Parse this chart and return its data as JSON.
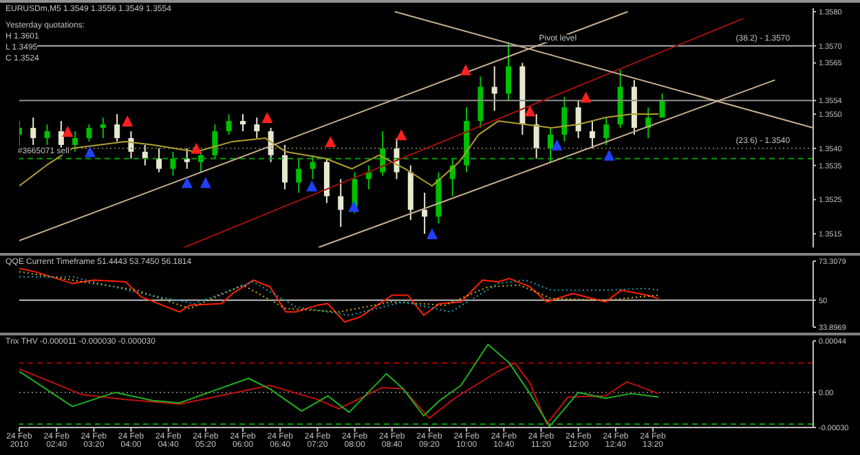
{
  "chart_data": [
    {
      "type": "candlestick",
      "title": "EURUSDm,M5 1.3549 1.3556 1.3549 1.3554",
      "annotations": [
        "Yesterday quotations:",
        "H 1.3601",
        "L 1.3495",
        "C 1.3524",
        {
          "text": "Pivot level",
          "x": "2010-02-24T11:38",
          "y": 1.357
        },
        {
          "text": "#3665071 sell",
          "x": "2010-02-24T02:26",
          "y": 1.3537
        },
        {
          "text": "(38.2) - 1.3570",
          "x": "2010-02-24T15:18",
          "y": 1.357
        },
        {
          "text": "(23.6) - 1.3540",
          "x": "2010-02-24T15:18",
          "y": 1.354
        }
      ],
      "xlim": [
        "2010-02-24T02:00",
        "2010-02-24T16:12"
      ],
      "ylim": [
        1.3511,
        1.3581
      ],
      "yticks": [
        1.3515,
        1.3525,
        1.3535,
        {
          "value": 1.354,
          "label": "1.3540"
        },
        {
          "value": 1.355,
          "label": "1.3550"
        },
        1.3554,
        1.3565,
        {
          "value": 1.357,
          "label": "1.3570"
        },
        {
          "value": 1.358,
          "label": "1.3580"
        }
      ],
      "tick_labels": "y",
      "ref_lines": [
        {
          "axis": "y",
          "value": 1.357,
          "color": "#b0b0b0"
        },
        {
          "axis": "y",
          "value": 1.3554,
          "color": "#909090"
        },
        {
          "axis": "y",
          "value": 1.354,
          "color": "#707050",
          "line_style": "dotted"
        },
        {
          "axis": "y",
          "value": 1.3537,
          "color": "#00a000",
          "line_style": "dashed"
        }
      ],
      "series": [
        {
          "type": "candlestick",
          "x": [
            "2010-02-24T02:00",
            "2010-02-24T02:15",
            "2010-02-24T02:30",
            "2010-02-24T02:45",
            "2010-02-24T03:00",
            "2010-02-24T03:15",
            "2010-02-24T03:30",
            "2010-02-24T03:45",
            "2010-02-24T04:00",
            "2010-02-24T04:15",
            "2010-02-24T04:30",
            "2010-02-24T04:45",
            "2010-02-24T05:00",
            "2010-02-24T05:15",
            "2010-02-24T05:30",
            "2010-02-24T05:45",
            "2010-02-24T06:00",
            "2010-02-24T06:15",
            "2010-02-24T06:30",
            "2010-02-24T06:45",
            "2010-02-24T07:00",
            "2010-02-24T07:15",
            "2010-02-24T07:30",
            "2010-02-24T07:45",
            "2010-02-24T08:00",
            "2010-02-24T08:15",
            "2010-02-24T08:30",
            "2010-02-24T08:45",
            "2010-02-24T09:00",
            "2010-02-24T09:15",
            "2010-02-24T09:30",
            "2010-02-24T09:45",
            "2010-02-24T10:00",
            "2010-02-24T10:15",
            "2010-02-24T10:30",
            "2010-02-24T10:45",
            "2010-02-24T11:00",
            "2010-02-24T11:15",
            "2010-02-24T11:30",
            "2010-02-24T11:45",
            "2010-02-24T12:00",
            "2010-02-24T12:15",
            "2010-02-24T12:30",
            "2010-02-24T12:45",
            "2010-02-24T13:00",
            "2010-02-24T13:15",
            "2010-02-24T13:30"
          ],
          "ohlc": [
            [
              1.3544,
              1.3548,
              1.354,
              1.3546
            ],
            [
              1.3546,
              1.3549,
              1.3541,
              1.3543
            ],
            [
              1.3543,
              1.3547,
              1.3541,
              1.3545
            ],
            [
              1.3545,
              1.3548,
              1.354,
              1.3541
            ],
            [
              1.3541,
              1.3545,
              1.3539,
              1.3543
            ],
            [
              1.3543,
              1.3547,
              1.3542,
              1.3546
            ],
            [
              1.3546,
              1.3549,
              1.3543,
              1.3547
            ],
            [
              1.3547,
              1.355,
              1.3542,
              1.3543
            ],
            [
              1.3543,
              1.3545,
              1.3537,
              1.3539
            ],
            [
              1.3539,
              1.3541,
              1.3535,
              1.3537
            ],
            [
              1.3537,
              1.354,
              1.3533,
              1.3534
            ],
            [
              1.3534,
              1.3539,
              1.3532,
              1.3537
            ],
            [
              1.3537,
              1.354,
              1.3534,
              1.3536
            ],
            [
              1.3536,
              1.3539,
              1.3533,
              1.3538
            ],
            [
              1.3538,
              1.3547,
              1.3537,
              1.3545
            ],
            [
              1.3545,
              1.355,
              1.3544,
              1.3548
            ],
            [
              1.3548,
              1.355,
              1.3545,
              1.3547
            ],
            [
              1.3547,
              1.3549,
              1.3543,
              1.3545
            ],
            [
              1.3545,
              1.3546,
              1.3536,
              1.3538
            ],
            [
              1.3538,
              1.3541,
              1.3528,
              1.353
            ],
            [
              1.353,
              1.3537,
              1.3527,
              1.3534
            ],
            [
              1.3534,
              1.3538,
              1.3531,
              1.3536
            ],
            [
              1.3536,
              1.3537,
              1.3524,
              1.3526
            ],
            [
              1.3526,
              1.3531,
              1.3517,
              1.3522
            ],
            [
              1.3522,
              1.3533,
              1.3521,
              1.3531
            ],
            [
              1.3531,
              1.3535,
              1.3528,
              1.3533
            ],
            [
              1.3533,
              1.3545,
              1.3532,
              1.354
            ],
            [
              1.354,
              1.3543,
              1.3531,
              1.3533
            ],
            [
              1.3533,
              1.3535,
              1.3519,
              1.3522
            ],
            [
              1.3522,
              1.3527,
              1.3515,
              1.352
            ],
            [
              1.352,
              1.3533,
              1.3518,
              1.3531
            ],
            [
              1.3531,
              1.3537,
              1.3526,
              1.3535
            ],
            [
              1.3535,
              1.3552,
              1.3533,
              1.3548
            ],
            [
              1.3548,
              1.3561,
              1.3546,
              1.3558
            ],
            [
              1.3558,
              1.3564,
              1.3551,
              1.3556
            ],
            [
              1.3556,
              1.3571,
              1.3554,
              1.3564
            ],
            [
              1.3564,
              1.3565,
              1.3544,
              1.3547
            ],
            [
              1.3547,
              1.355,
              1.3537,
              1.354
            ],
            [
              1.354,
              1.3546,
              1.3536,
              1.3544
            ],
            [
              1.3544,
              1.3555,
              1.3542,
              1.3552
            ],
            [
              1.3552,
              1.3554,
              1.3543,
              1.3545
            ],
            [
              1.3545,
              1.3548,
              1.354,
              1.3543
            ],
            [
              1.3543,
              1.3549,
              1.3541,
              1.3547
            ],
            [
              1.3547,
              1.3563,
              1.3546,
              1.3558
            ],
            [
              1.3558,
              1.356,
              1.3544,
              1.3546
            ],
            [
              1.3546,
              1.3552,
              1.3543,
              1.3549
            ],
            [
              1.3549,
              1.3556,
              1.3549,
              1.3554
            ]
          ],
          "colors": [
            "#00c000",
            "#e8e8d0",
            "#00c000",
            "#e8e8d0",
            "#00c000",
            "#00c000",
            "#00c000",
            "#e8e8d0",
            "#e8e8d0",
            "#e8e8d0",
            "#e8e8d0",
            "#00c000",
            "#e8e8d0",
            "#00c000",
            "#00c000",
            "#00c000",
            "#e8e8d0",
            "#e8e8d0",
            "#e8e8d0",
            "#e8e8d0",
            "#00c000",
            "#00c000",
            "#e8e8d0",
            "#e8e8d0",
            "#00c000",
            "#00c000",
            "#00c000",
            "#e8e8d0",
            "#e8e8d0",
            "#e8e8d0",
            "#00c000",
            "#00c000",
            "#00c000",
            "#00c000",
            "#e8e8d0",
            "#00c000",
            "#e8e8d0",
            "#e8e8d0",
            "#00c000",
            "#00c000",
            "#e8e8d0",
            "#e8e8d0",
            "#00c000",
            "#00c000",
            "#e8e8d0",
            "#00c000",
            "#00c000"
          ]
        },
        {
          "type": "line",
          "color": "#b0a030",
          "x": [
            "2010-02-24T02:00",
            "2010-02-24T02:29",
            "2010-02-24T02:57",
            "2010-02-24T03:54",
            "2010-02-24T04:23",
            "2010-02-24T05:10",
            "2010-02-24T05:49",
            "2010-02-24T06:24",
            "2010-02-24T06:46",
            "2010-02-24T07:29",
            "2010-02-24T07:57",
            "2010-02-24T08:26",
            "2010-02-24T08:54",
            "2010-02-24T09:23",
            "2010-02-24T09:52",
            "2010-02-24T10:13",
            "2010-02-24T10:34",
            "2010-02-24T11:03",
            "2010-02-24T11:31",
            "2010-02-24T12:00",
            "2010-02-24T12:29",
            "2010-02-24T12:57",
            "2010-02-24T13:26"
          ],
          "values": [
            1.3529,
            1.3535,
            1.354,
            1.3542,
            1.3541,
            1.3539,
            1.3542,
            1.3543,
            1.3539,
            1.3537,
            1.3534,
            1.3538,
            1.3534,
            1.3529,
            1.3536,
            1.3544,
            1.3548,
            1.3547,
            1.3546,
            1.3547,
            1.3549,
            1.355,
            1.355
          ]
        },
        {
          "type": "line",
          "color": "#c8b090",
          "x": [
            "2010-02-24T02:00",
            "2010-02-24T12:53"
          ],
          "values": [
            1.3513,
            1.358
          ]
        },
        {
          "type": "line",
          "color": "#c8b090",
          "x": [
            "2010-02-24T07:21",
            "2010-02-24T15:31"
          ],
          "values": [
            1.3511,
            1.356
          ]
        },
        {
          "type": "line",
          "color": "#a01010",
          "x": [
            "2010-02-24T04:57",
            "2010-02-24T14:57"
          ],
          "values": [
            1.3511,
            1.3578
          ]
        },
        {
          "type": "line",
          "color": "#c8b090",
          "x": [
            "2010-02-24T08:43",
            "2010-02-24T16:12"
          ],
          "values": [
            1.358,
            1.3546
          ]
        },
        {
          "type": "scatter",
          "marker": "triangle",
          "color": "#ff2020",
          "x": [
            "2010-02-24T02:52",
            "2010-02-24T03:56",
            "2010-02-24T05:10",
            "2010-02-24T06:26",
            "2010-02-24T07:34",
            "2010-02-24T08:50",
            "2010-02-24T09:59",
            "2010-02-24T11:08",
            "2010-02-24T12:08"
          ],
          "values": [
            1.3545,
            1.3548,
            1.354,
            1.3549,
            1.3542,
            1.3544,
            1.3563,
            1.3551,
            1.3555
          ]
        },
        {
          "type": "scatter",
          "marker": "triangle",
          "color": "#2040ff",
          "x": [
            "2010-02-24T03:16",
            "2010-02-24T05:00",
            "2010-02-24T05:20",
            "2010-02-24T07:14",
            "2010-02-24T07:59",
            "2010-02-24T09:23",
            "2010-02-24T11:37",
            "2010-02-24T12:33"
          ],
          "values": [
            1.3539,
            1.353,
            1.353,
            1.3529,
            1.3523,
            1.3515,
            1.3541,
            1.3538
          ]
        }
      ]
    },
    {
      "type": "line",
      "title": "QQE Current Timeframe 51.4443 53.7450 56.1814",
      "xlim": [
        "2010-02-24T02:00",
        "2010-02-24T16:12"
      ],
      "ylim": [
        33.8969,
        73.3079
      ],
      "yticks": [
        33.8969,
        50,
        73.3079
      ],
      "tick_labels": "y",
      "ref_lines": [
        {
          "axis": "y",
          "value": 50,
          "color": "#c0c0c0"
        }
      ],
      "series": [
        {
          "color": "#ff2000",
          "x": [
            "2010-02-24T02:00",
            "2010-02-24T02:17",
            "2010-02-24T02:57",
            "2010-02-24T03:20",
            "2010-02-24T03:54",
            "2010-02-24T04:11",
            "2010-02-24T04:52",
            "2010-02-24T05:03",
            "2010-02-24T05:37",
            "2010-02-24T05:49",
            "2010-02-24T06:11",
            "2010-02-24T06:29",
            "2010-02-24T06:46",
            "2010-02-24T06:57",
            "2010-02-24T07:20",
            "2010-02-24T07:31",
            "2010-02-24T07:49",
            "2010-02-24T08:06",
            "2010-02-24T08:40",
            "2010-02-24T08:57",
            "2010-02-24T09:14",
            "2010-02-24T09:31",
            "2010-02-24T09:54",
            "2010-02-24T10:17",
            "2010-02-24T10:34",
            "2010-02-24T10:46",
            "2010-02-24T11:08",
            "2010-02-24T11:26",
            "2010-02-24T11:54",
            "2010-02-24T12:29",
            "2010-02-24T12:46",
            "2010-02-24T13:14",
            "2010-02-24T13:26"
          ],
          "values": [
            69,
            67,
            60,
            62,
            61,
            52,
            43,
            47,
            48,
            54,
            62,
            58,
            43,
            43,
            47,
            48,
            37,
            40,
            53,
            53,
            41,
            48,
            49,
            62,
            61,
            63,
            58,
            49,
            54,
            49,
            56,
            53,
            51
          ]
        },
        {
          "color": "#c8b020",
          "line_style": "dotted",
          "x": [
            "2010-02-24T02:00",
            "2010-02-24T02:57",
            "2010-02-24T04:06",
            "2010-02-24T05:03",
            "2010-02-24T06:00",
            "2010-02-24T06:46",
            "2010-02-24T07:43",
            "2010-02-24T08:40",
            "2010-02-24T09:37",
            "2010-02-24T10:23",
            "2010-02-24T10:57",
            "2010-02-24T11:31",
            "2010-02-24T12:29",
            "2010-02-24T13:26"
          ],
          "values": [
            67,
            62,
            56,
            45,
            59,
            45,
            43,
            49,
            47,
            58,
            59,
            51,
            50,
            53
          ]
        },
        {
          "color": "#20a0b0",
          "line_style": "dotted",
          "x": [
            "2010-02-24T02:00",
            "2010-02-24T02:57",
            "2010-02-24T04:11",
            "2010-02-24T05:08",
            "2010-02-24T06:11",
            "2010-02-24T06:57",
            "2010-02-24T07:54",
            "2010-02-24T08:52",
            "2010-02-24T09:43",
            "2010-02-24T10:34",
            "2010-02-24T11:03",
            "2010-02-24T11:31",
            "2010-02-24T12:29",
            "2010-02-24T13:14",
            "2010-02-24T13:26"
          ],
          "values": [
            64,
            64,
            54,
            48,
            61,
            46,
            41,
            49,
            43,
            60,
            62,
            56,
            56,
            57,
            56
          ]
        }
      ]
    },
    {
      "type": "line",
      "title": "Trix THV -0.000011 -0.000030 -0.000030",
      "xlim": [
        "2010-02-24T02:00",
        "2010-02-24T16:12"
      ],
      "ylim": [
        -0.0003,
        0.00044
      ],
      "yticks": [
        {
          "value": -0.0003,
          "label": "-0.00030"
        },
        {
          "value": 0,
          "label": "0.00"
        },
        0.00044
      ],
      "xticks": [
        {
          "value": "2010-02-24T02:00",
          "label": "24 Feb 2010"
        },
        {
          "value": "2010-02-24T02:40",
          "label": "24 Feb 02:40"
        },
        {
          "value": "2010-02-24T03:20",
          "label": "24 Feb 03:20"
        },
        {
          "value": "2010-02-24T04:00",
          "label": "24 Feb 04:00"
        },
        {
          "value": "2010-02-24T04:40",
          "label": "24 Feb 04:40"
        },
        {
          "value": "2010-02-24T05:20",
          "label": "24 Feb 05:20"
        },
        {
          "value": "2010-02-24T06:00",
          "label": "24 Feb 06:00"
        },
        {
          "value": "2010-02-24T06:40",
          "label": "24 Feb 06:40"
        },
        {
          "value": "2010-02-24T07:20",
          "label": "24 Feb 07:20"
        },
        {
          "value": "2010-02-24T08:00",
          "label": "24 Feb 08:00"
        },
        {
          "value": "2010-02-24T08:40",
          "label": "24 Feb 08:40"
        },
        {
          "value": "2010-02-24T09:20",
          "label": "24 Feb 09:20"
        },
        {
          "value": "2010-02-24T10:00",
          "label": "24 Feb 10:00"
        },
        {
          "value": "2010-02-24T10:40",
          "label": "24 Feb 10:40"
        },
        {
          "value": "2010-02-24T11:20",
          "label": "24 Feb 11:20"
        },
        {
          "value": "2010-02-24T12:00",
          "label": "24 Feb 12:00"
        },
        {
          "value": "2010-02-24T12:40",
          "label": "24 Feb 12:40"
        },
        {
          "value": "2010-02-24T13:20",
          "label": "24 Feb 13:20"
        }
      ],
      "ref_lines": [
        {
          "axis": "y",
          "value": 0.00025,
          "color": "#a00000",
          "line_style": "dashed"
        },
        {
          "axis": "y",
          "value": 0,
          "color": "#707070",
          "line_style": "dotted"
        },
        {
          "axis": "y",
          "value": -0.00027,
          "color": "#00a000",
          "line_style": "dashed"
        }
      ],
      "series": [
        {
          "color": "#c01010",
          "x": [
            "2010-02-24T02:00",
            "2010-02-24T03:08",
            "2010-02-24T03:54",
            "2010-02-24T04:52",
            "2010-02-24T06:29",
            "2010-02-24T07:20",
            "2010-02-24T07:43",
            "2010-02-24T08:29",
            "2010-02-24T08:52",
            "2010-02-24T09:20",
            "2010-02-24T09:49",
            "2010-02-24T10:34",
            "2010-02-24T10:52",
            "2010-02-24T11:08",
            "2010-02-24T11:26",
            "2010-02-24T11:49",
            "2010-02-24T12:29",
            "2010-02-24T12:52",
            "2010-02-24T13:26"
          ],
          "values": [
            0.0002,
            -2e-05,
            -6e-05,
            -0.0001,
            6e-05,
            -6e-05,
            -0.00014,
            4e-05,
            3e-05,
            -0.00022,
            -4e-05,
            0.00018,
            0.00025,
            8e-05,
            -0.00027,
            -4e-05,
            -3e-05,
            9e-05,
            -1e-05
          ]
        },
        {
          "color": "#20b020",
          "x": [
            "2010-02-24T02:00",
            "2010-02-24T02:57",
            "2010-02-24T03:43",
            "2010-02-24T04:23",
            "2010-02-24T04:52",
            "2010-02-24T05:20",
            "2010-02-24T06:06",
            "2010-02-24T06:29",
            "2010-02-24T07:03",
            "2010-02-24T07:31",
            "2010-02-24T07:54",
            "2010-02-24T08:34",
            "2010-02-24T08:52",
            "2010-02-24T09:14",
            "2010-02-24T09:31",
            "2010-02-24T09:54",
            "2010-02-24T10:23",
            "2010-02-24T10:46",
            "2010-02-24T11:08",
            "2010-02-24T11:29",
            "2010-02-24T12:00",
            "2010-02-24T12:29",
            "2010-02-24T12:57",
            "2010-02-24T13:26"
          ],
          "values": [
            0.00018,
            -0.00012,
            0,
            -7e-05,
            -9e-05,
            -1e-05,
            0.00012,
            3e-05,
            -0.00016,
            -3e-05,
            -0.00017,
            0.00016,
            3e-05,
            -0.0002,
            -7e-05,
            6e-05,
            0.00041,
            0.00025,
            -1e-05,
            -0.00029,
            0,
            -5e-05,
            -1e-05,
            -4e-05
          ]
        }
      ]
    }
  ]
}
